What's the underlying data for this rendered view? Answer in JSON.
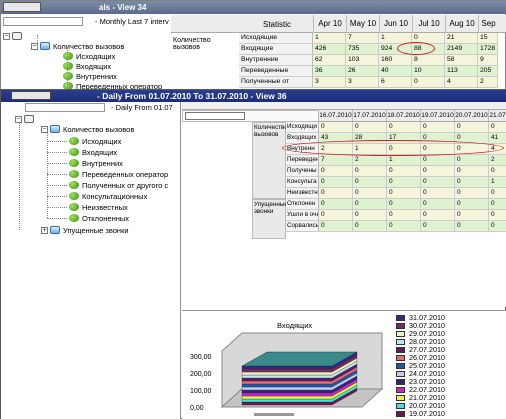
{
  "back_window": {
    "title": "- Monthly Last 7 interv - Monthly Last 7 intervals - View 34",
    "title_short": "- Monthly Last 7 interv",
    "title_right": "als - View 34",
    "tree": {
      "path_label": "- Monthly Last 7 interv",
      "items": [
        {
          "label": "Количество вызовов"
        },
        {
          "label": "Исходящих"
        },
        {
          "label": "Входящих"
        },
        {
          "label": "Внутренних"
        },
        {
          "label": "Переведенных оператор"
        },
        {
          "label": "Полученных от другого с"
        }
      ]
    },
    "grid": {
      "header_label": "Statistic",
      "columns": [
        "Apr 10",
        "May 10",
        "Jun 10",
        "Jul 10",
        "Aug 10",
        "Sep"
      ],
      "group_label": "Количество вызовов",
      "rows": [
        {
          "label": "Исходящие",
          "values": [
            "1",
            "7",
            "1",
            "0",
            "21",
            "15"
          ]
        },
        {
          "label": "Входящие",
          "values": [
            "426",
            "735",
            "924",
            "88",
            "2149",
            "1728"
          ]
        },
        {
          "label": "Внутренние",
          "values": [
            "62",
            "103",
            "160",
            "8",
            "58",
            "9"
          ]
        },
        {
          "label": "Переведенные",
          "values": [
            "36",
            "26",
            "40",
            "10",
            "113",
            "205"
          ]
        },
        {
          "label": "Полученные от",
          "values": [
            "3",
            "3",
            "6",
            "0",
            "4",
            "2"
          ]
        }
      ]
    }
  },
  "front_window": {
    "title": "- Daily From 01.07.2010 To 31.07.2010 - View 36",
    "tree": {
      "path_label": "- Daily From 01.07",
      "items": [
        {
          "label": "Количество вызовов"
        },
        {
          "label": "Исходящих"
        },
        {
          "label": "Входящих"
        },
        {
          "label": "Внутренних"
        },
        {
          "label": "Переведенных оператор"
        },
        {
          "label": "Полученных от другого с"
        },
        {
          "label": "Консультационных"
        },
        {
          "label": "Неизвестных"
        },
        {
          "label": "Отклоненных"
        },
        {
          "label": "Упущенные звонки"
        }
      ]
    },
    "grid": {
      "dates": [
        "16.07.2010",
        "17.07.2010",
        "18.07.2010",
        "19.07.2010",
        "20.07.2010",
        "21.07"
      ],
      "group1_label": "Количество вызовов",
      "group2_label": "Упущенные звонки",
      "rows": [
        {
          "label": "Исходящи",
          "values": [
            "0",
            "0",
            "0",
            "0",
            "0",
            "0"
          ]
        },
        {
          "label": "Входящих",
          "values": [
            "43",
            "28",
            "17",
            "0",
            "0",
            "41"
          ]
        },
        {
          "label": "Внутренн",
          "values": [
            "2",
            "1",
            "0",
            "0",
            "0",
            "4"
          ]
        },
        {
          "label": "Переведен",
          "values": [
            "7",
            "2",
            "1",
            "0",
            "0",
            "2"
          ]
        },
        {
          "label": "Получены",
          "values": [
            "0",
            "0",
            "0",
            "0",
            "0",
            "0"
          ]
        },
        {
          "label": "Консульта",
          "values": [
            "0",
            "0",
            "0",
            "0",
            "0",
            "1"
          ]
        },
        {
          "label": "Неизвестн",
          "values": [
            "0",
            "0",
            "0",
            "0",
            "0",
            "0"
          ]
        },
        {
          "label": "Отклонен",
          "values": [
            "0",
            "0",
            "0",
            "0",
            "0",
            "0"
          ]
        },
        {
          "label": "Ушли в очереди",
          "values": [
            "0",
            "0",
            "0",
            "0",
            "0",
            "0"
          ]
        },
        {
          "label": "Сорвались",
          "values": [
            "0",
            "0",
            "0",
            "0",
            "0",
            "0"
          ]
        }
      ]
    }
  },
  "chart_data": {
    "type": "bar",
    "title": "Входящих",
    "y_ticks": [
      "300,00",
      "200,00",
      "100,00",
      "0,00"
    ],
    "ylim": [
      0,
      300
    ],
    "legend_position": "right",
    "legend": [
      {
        "label": "31.07.2010",
        "color": "#2b2b8a"
      },
      {
        "label": "30.07.2010",
        "color": "#7a2a5a"
      },
      {
        "label": "29.07.2010",
        "color": "#f0f0c0"
      },
      {
        "label": "28.07.2010",
        "color": "#b8e8f0"
      },
      {
        "label": "27.07.2010",
        "color": "#5a1a6a"
      },
      {
        "label": "26.07.2010",
        "color": "#e86a6a"
      },
      {
        "label": "25.07.2010",
        "color": "#1a5aa8"
      },
      {
        "label": "24.07.2010",
        "color": "#c8c8f0"
      },
      {
        "label": "23.07.2010",
        "color": "#2a2a7a"
      },
      {
        "label": "22.07.2010",
        "color": "#d020d0"
      },
      {
        "label": "21.07.2010",
        "color": "#f0f040"
      },
      {
        "label": "20.07.2010",
        "color": "#40e0e0"
      },
      {
        "label": "19.07.2010",
        "color": "#6a1a4a"
      }
    ]
  }
}
